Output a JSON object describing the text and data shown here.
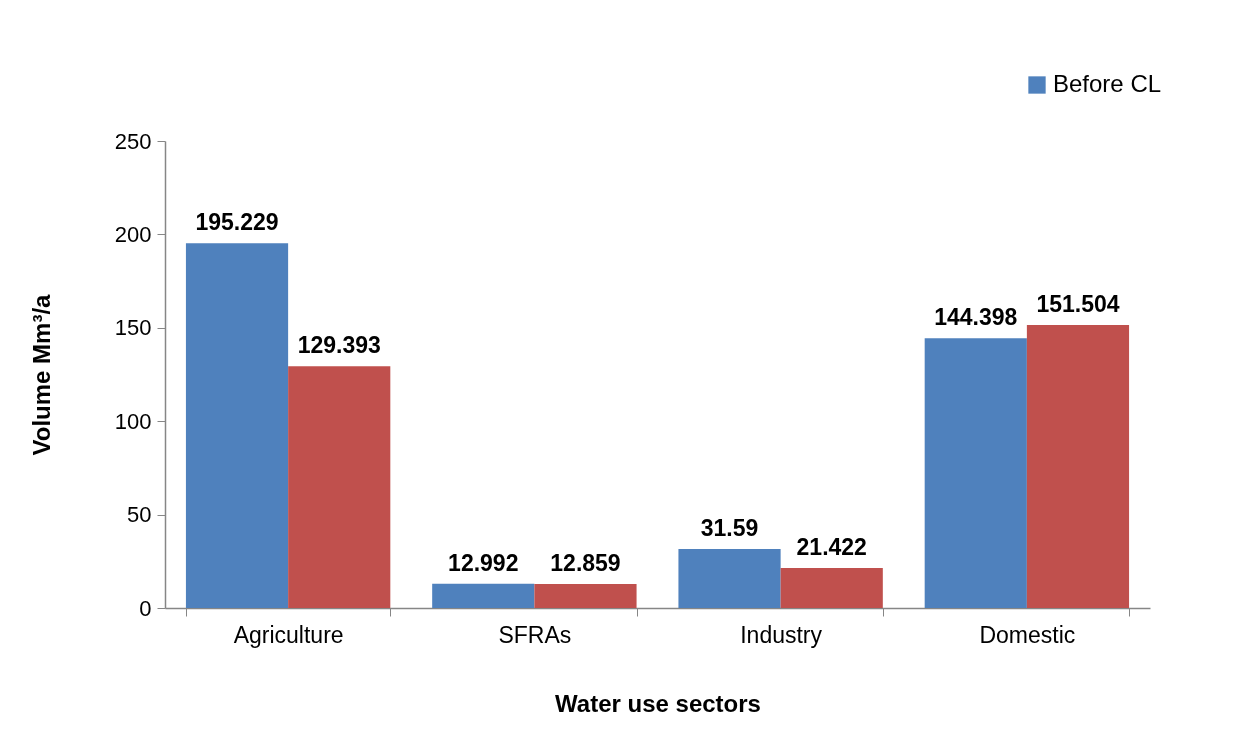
{
  "chart_data": {
    "type": "bar",
    "xlabel": "Water use sectors",
    "ylabel": "Volume Mm³/a",
    "categories": [
      "Agriculture",
      "SFRAs",
      "Industry",
      "Domestic"
    ],
    "series": [
      {
        "name": "Before CL",
        "color": "#4f81bd",
        "values": [
          195.229,
          12.992,
          31.59,
          144.398
        ]
      },
      {
        "color": "#c0504d",
        "values": [
          129.393,
          12.859,
          21.422,
          151.504
        ]
      }
    ],
    "ylim": [
      0,
      250
    ],
    "yticks": [
      0,
      50,
      100,
      150,
      200,
      250
    ],
    "data_labels": true,
    "legend": "top right",
    "grid": false
  }
}
